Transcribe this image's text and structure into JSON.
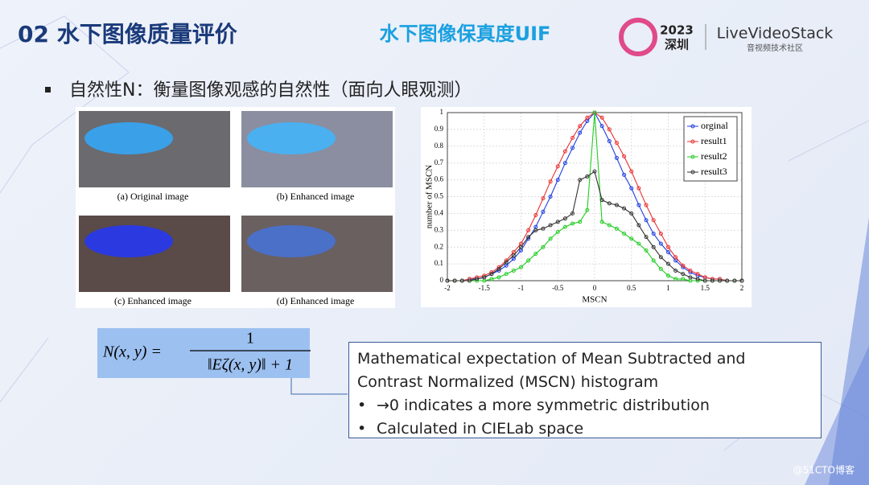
{
  "header": {
    "section": "02  水下图像质量评价",
    "title": "水下图像保真度UIF",
    "logo_year": "2023",
    "logo_city": "深圳",
    "brand": "LiveVideoStack",
    "brand_sub": "音视频技术社区"
  },
  "bullet": "自然性N：衡量图像观感的自然性（面向人眼观测）",
  "images": {
    "captions": [
      "(a) Original image",
      "(b) Enhanced image",
      "(c) Enhanced image",
      "(d) Enhanced image"
    ]
  },
  "formula": {
    "lhs": "N(x, y) =",
    "numerator": "1",
    "denominator": "‖Eζ(x, y)‖ + 1"
  },
  "chart_data": {
    "type": "line",
    "x_label": "MSCN",
    "y_label": "number of MSCN",
    "x": [
      -2,
      -1.9,
      -1.8,
      -1.7,
      -1.6,
      -1.5,
      -1.4,
      -1.3,
      -1.2,
      -1.1,
      -1,
      -0.9,
      -0.8,
      -0.7,
      -0.6,
      -0.5,
      -0.4,
      -0.3,
      -0.2,
      -0.1,
      0,
      0.1,
      0.2,
      0.3,
      0.4,
      0.5,
      0.6,
      0.7,
      0.8,
      0.9,
      1,
      1.1,
      1.2,
      1.3,
      1.4,
      1.5,
      1.6,
      1.7,
      1.8,
      1.9,
      2
    ],
    "series": [
      {
        "name": "orginal",
        "color": "#1f3fe0",
        "values": [
          0,
          0,
          0,
          0.01,
          0.01,
          0.02,
          0.04,
          0.06,
          0.09,
          0.13,
          0.18,
          0.25,
          0.32,
          0.41,
          0.5,
          0.6,
          0.7,
          0.79,
          0.88,
          0.95,
          1,
          0.92,
          0.83,
          0.73,
          0.63,
          0.55,
          0.45,
          0.36,
          0.28,
          0.22,
          0.17,
          0.12,
          0.08,
          0.05,
          0.03,
          0.02,
          0.01,
          0.01,
          0,
          0,
          0
        ]
      },
      {
        "name": "result1",
        "color": "#e83030",
        "values": [
          0,
          0,
          0,
          0.01,
          0.02,
          0.03,
          0.05,
          0.08,
          0.12,
          0.17,
          0.22,
          0.3,
          0.39,
          0.49,
          0.59,
          0.68,
          0.77,
          0.85,
          0.92,
          0.97,
          1,
          0.97,
          0.9,
          0.82,
          0.74,
          0.65,
          0.55,
          0.45,
          0.36,
          0.28,
          0.2,
          0.14,
          0.09,
          0.06,
          0.04,
          0.02,
          0.01,
          0.01,
          0,
          0,
          0
        ]
      },
      {
        "name": "result2",
        "color": "#22cc22",
        "values": [
          0,
          0,
          0,
          0,
          0,
          0,
          0.01,
          0.02,
          0.04,
          0.06,
          0.08,
          0.12,
          0.16,
          0.2,
          0.25,
          0.29,
          0.32,
          0.34,
          0.35,
          0.42,
          1,
          0.35,
          0.33,
          0.31,
          0.28,
          0.25,
          0.22,
          0.18,
          0.12,
          0.07,
          0.03,
          0.01,
          0.01,
          0,
          0,
          0,
          0,
          0,
          0,
          0,
          0
        ]
      },
      {
        "name": "result3",
        "color": "#333333",
        "values": [
          0,
          0,
          0,
          0,
          0.01,
          0.02,
          0.04,
          0.07,
          0.11,
          0.15,
          0.2,
          0.26,
          0.3,
          0.31,
          0.33,
          0.35,
          0.37,
          0.4,
          0.6,
          0.62,
          0.65,
          0.48,
          0.46,
          0.45,
          0.43,
          0.4,
          0.33,
          0.26,
          0.2,
          0.14,
          0.1,
          0.06,
          0.04,
          0.02,
          0.01,
          0,
          0,
          0,
          0,
          0,
          0
        ]
      }
    ],
    "xlim": [
      -2,
      2
    ],
    "ylim": [
      0,
      1
    ],
    "xticks": [
      -2,
      -1.5,
      -1,
      -0.5,
      0,
      0.5,
      1,
      1.5,
      2
    ],
    "yticks": [
      0,
      0.1,
      0.2,
      0.3,
      0.4,
      0.5,
      0.6,
      0.7,
      0.8,
      0.9,
      1
    ],
    "grid": true,
    "legend": "upper right"
  },
  "note": {
    "title": "Mathematical expectation of Mean Subtracted and Contrast Normalized (MSCN) histogram",
    "items": [
      "→0 indicates a more symmetric distribution",
      "Calculated in CIELab space"
    ]
  },
  "watermark": "@51CTO博客"
}
